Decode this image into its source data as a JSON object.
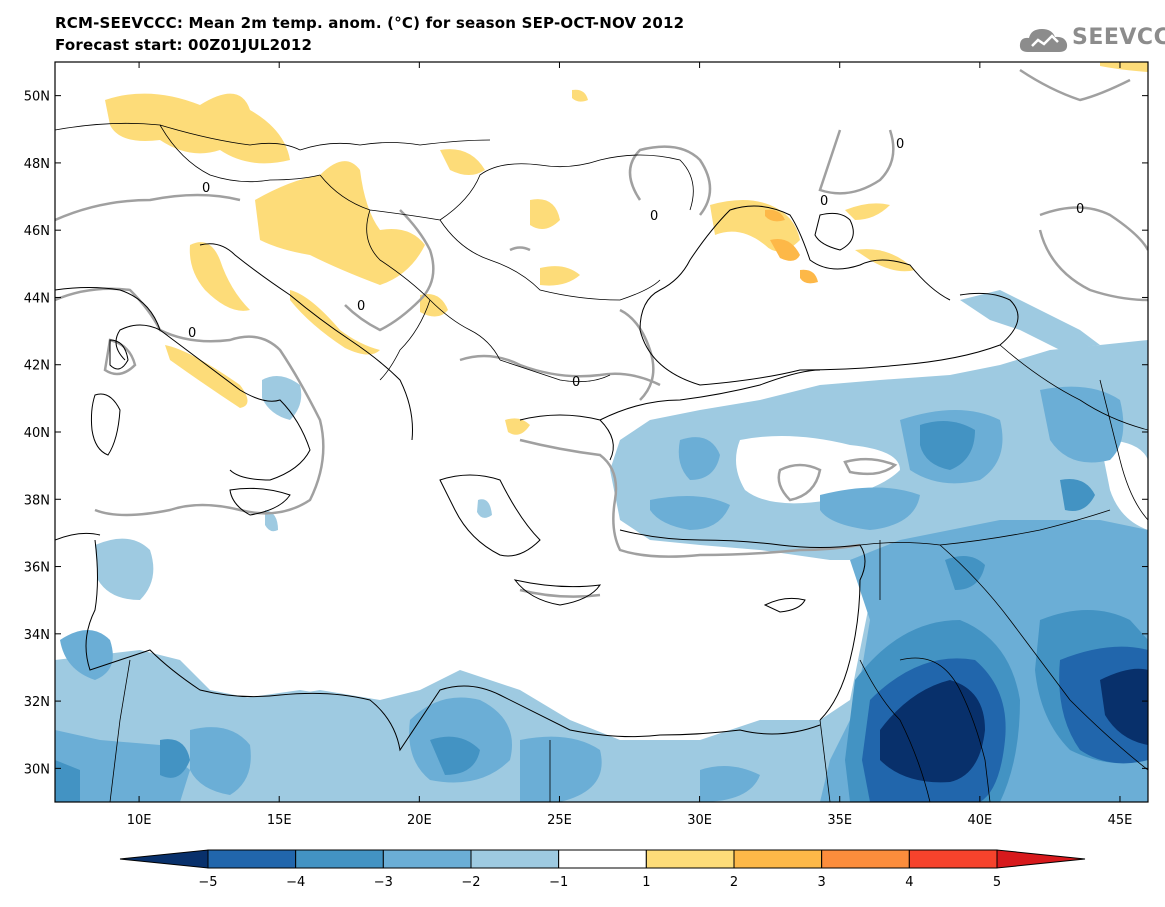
{
  "header": {
    "title": "RCM-SEEVCCC: Mean 2m temp. anom. (°C) for season SEP-OCT-NOV 2012",
    "subtitle": "Forecast start: 00Z01JUL2012"
  },
  "logo": {
    "text": "SEEVCCC",
    "icon": "cloud-icon",
    "color": "#8c8c8c"
  },
  "map": {
    "region": "Southeast Europe, Mediterranean and Middle East",
    "lon_range": [
      7,
      46
    ],
    "lat_range": [
      29,
      51
    ],
    "lat_ticks": [
      {
        "value": 50,
        "label": "50N"
      },
      {
        "value": 48,
        "label": "48N"
      },
      {
        "value": 46,
        "label": "46N"
      },
      {
        "value": 44,
        "label": "44N"
      },
      {
        "value": 42,
        "label": "42N"
      },
      {
        "value": 40,
        "label": "40N"
      },
      {
        "value": 38,
        "label": "38N"
      },
      {
        "value": 36,
        "label": "36N"
      },
      {
        "value": 34,
        "label": "34N"
      },
      {
        "value": 32,
        "label": "32N"
      },
      {
        "value": 30,
        "label": "30N"
      }
    ],
    "lon_ticks": [
      {
        "value": 10,
        "label": "10E"
      },
      {
        "value": 15,
        "label": "15E"
      },
      {
        "value": 20,
        "label": "20E"
      },
      {
        "value": 25,
        "label": "25E"
      },
      {
        "value": 30,
        "label": "30E"
      },
      {
        "value": 35,
        "label": "35E"
      },
      {
        "value": 40,
        "label": "40E"
      },
      {
        "value": 45,
        "label": "45E"
      }
    ],
    "contour_label": "0",
    "contour_color": "#a0a0a0"
  },
  "colorbar": {
    "levels": [
      "−5",
      "−4",
      "−3",
      "−2",
      "−1",
      "1",
      "2",
      "3",
      "4",
      "5"
    ],
    "colors": [
      "#08306b",
      "#2166ac",
      "#4393c3",
      "#6baed6",
      "#9ecae1",
      "#ffffff",
      "#fddc79",
      "#fdb848",
      "#fc8d3c",
      "#f6432c",
      "#d7191c"
    ]
  }
}
